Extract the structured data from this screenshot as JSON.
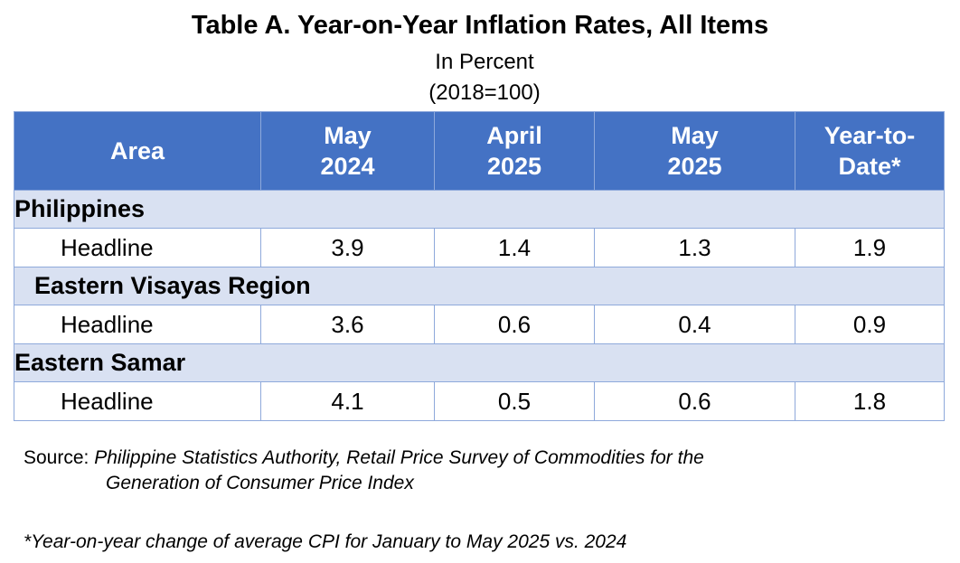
{
  "title": "Table A. Year-on-Year Inflation Rates, All Items",
  "subtitle1": "In Percent",
  "subtitle2": "(2018=100)",
  "table": {
    "headers": {
      "area": "Area",
      "col1_line1": "May",
      "col1_line2": "2024",
      "col2_line1": "April",
      "col2_line2": "2025",
      "col3_line1": "May",
      "col3_line2": "2025",
      "col4_line1": "Year-to-",
      "col4_line2": "Date*"
    },
    "sections": [
      {
        "name": "Philippines",
        "row": {
          "label": "Headline",
          "values": [
            "3.9",
            "1.4",
            "1.3",
            "1.9"
          ]
        }
      },
      {
        "name": "Eastern Visayas Region",
        "row": {
          "label": "Headline",
          "values": [
            "3.6",
            "0.6",
            "0.4",
            "0.9"
          ]
        }
      },
      {
        "name": "Eastern Samar",
        "row": {
          "label": "Headline",
          "values": [
            "4.1",
            "0.5",
            "0.6",
            "1.8"
          ]
        }
      }
    ]
  },
  "source_label": "Source: ",
  "source_line1": "Philippine Statistics Authority, Retail Price Survey of Commodities for the",
  "source_line2": "Generation of Consumer Price Index",
  "note": "*Year-on-year change of average CPI for January to May 2025 vs. 2024"
}
